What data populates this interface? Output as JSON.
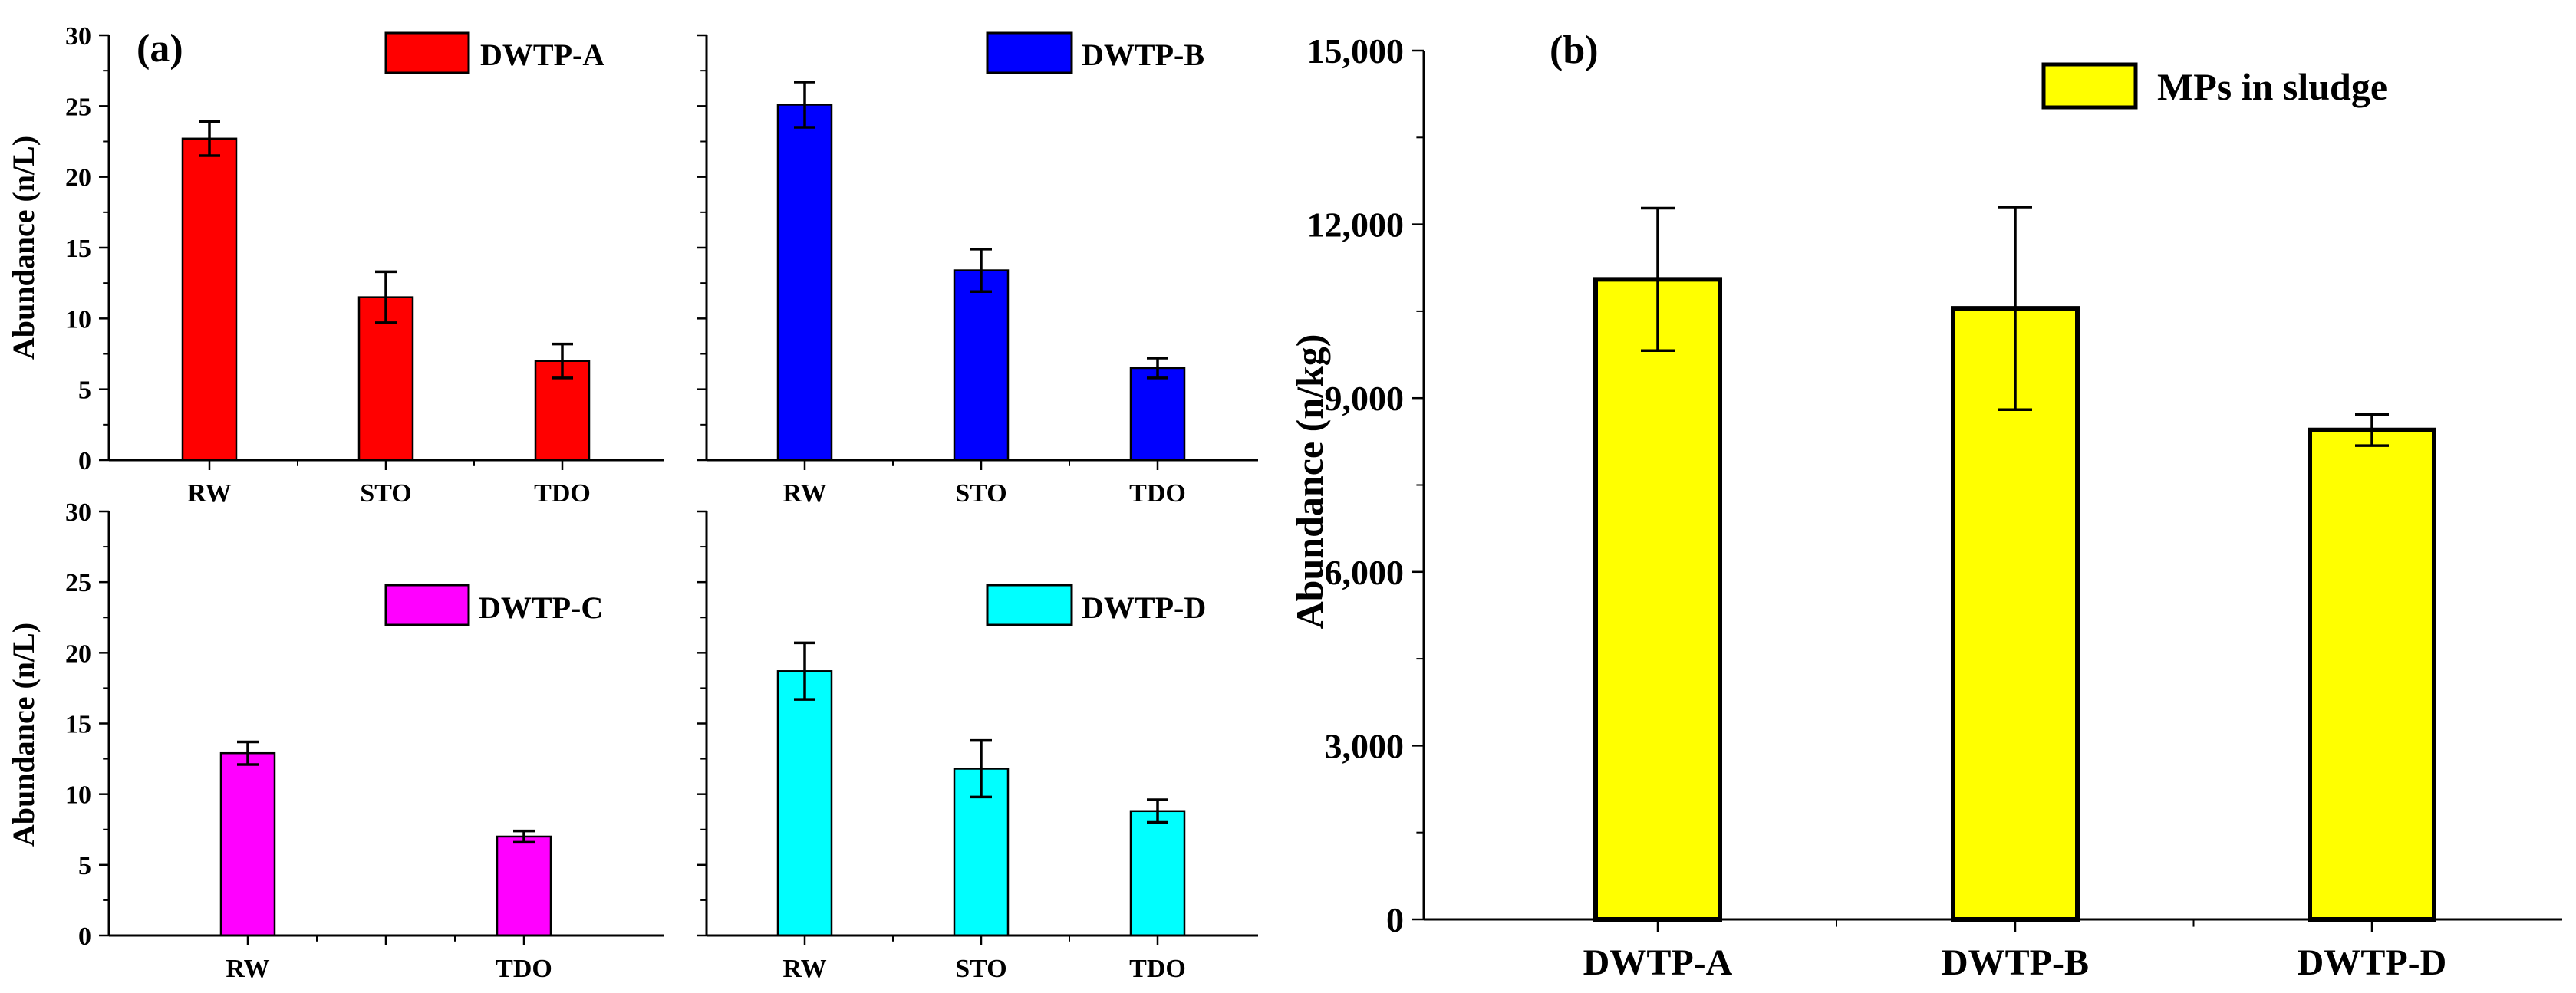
{
  "chart_data": [
    {
      "type": "bar",
      "panel": "(a)",
      "legend": "DWTP-A",
      "color": "#ff0000",
      "categories": [
        "RW",
        "STO",
        "TDO"
      ],
      "values": [
        22.7,
        11.5,
        7.0
      ],
      "errors": [
        1.2,
        1.8,
        1.2
      ],
      "ylabel": "Abundance (n/L)",
      "xlabel": "",
      "ylim": [
        0,
        30
      ],
      "yticks": [
        0,
        5,
        10,
        15,
        20,
        25,
        30
      ],
      "show_y_tick_labels": true
    },
    {
      "type": "bar",
      "legend": "DWTP-B",
      "color": "#0000ff",
      "categories": [
        "RW",
        "STO",
        "TDO"
      ],
      "values": [
        25.1,
        13.4,
        6.5
      ],
      "errors": [
        1.6,
        1.5,
        0.7
      ],
      "ylabel": "",
      "xlabel": "",
      "ylim": [
        0,
        30
      ],
      "yticks": [
        0,
        5,
        10,
        15,
        20,
        25,
        30
      ],
      "show_y_tick_labels": false
    },
    {
      "type": "bar",
      "legend": "DWTP-C",
      "color": "#ff00ff",
      "categories": [
        "RW",
        "",
        "TDO"
      ],
      "values": [
        12.9,
        null,
        7.0
      ],
      "errors": [
        0.8,
        null,
        0.4
      ],
      "ylabel": "Abundance (n/L)",
      "xlabel": "",
      "ylim": [
        0,
        30
      ],
      "yticks": [
        0,
        5,
        10,
        15,
        20,
        25,
        30
      ],
      "show_y_tick_labels": true
    },
    {
      "type": "bar",
      "legend": "DWTP-D",
      "color": "#00ffff",
      "categories": [
        "RW",
        "STO",
        "TDO"
      ],
      "values": [
        18.7,
        11.8,
        8.8
      ],
      "errors": [
        2.0,
        2.0,
        0.8
      ],
      "ylabel": "",
      "xlabel": "",
      "ylim": [
        0,
        30
      ],
      "yticks": [
        0,
        5,
        10,
        15,
        20,
        25,
        30
      ],
      "show_y_tick_labels": false
    },
    {
      "type": "bar",
      "panel": "(b)",
      "legend": "MPs in sludge",
      "color": "#ffff00",
      "categories": [
        "DWTP-A",
        "DWTP-B",
        "DWTP-D"
      ],
      "values": [
        11050,
        10550,
        8450
      ],
      "errors": [
        1230,
        1750,
        270
      ],
      "ylabel": "Abundance (n/kg)",
      "xlabel": "",
      "ylim": [
        0,
        15000
      ],
      "yticks": [
        0,
        3000,
        6000,
        9000,
        12000,
        15000
      ],
      "ytick_labels": [
        "0",
        "3,000",
        "6,000",
        "9,000",
        "12,000",
        "15,000"
      ],
      "show_y_tick_labels": true
    }
  ]
}
